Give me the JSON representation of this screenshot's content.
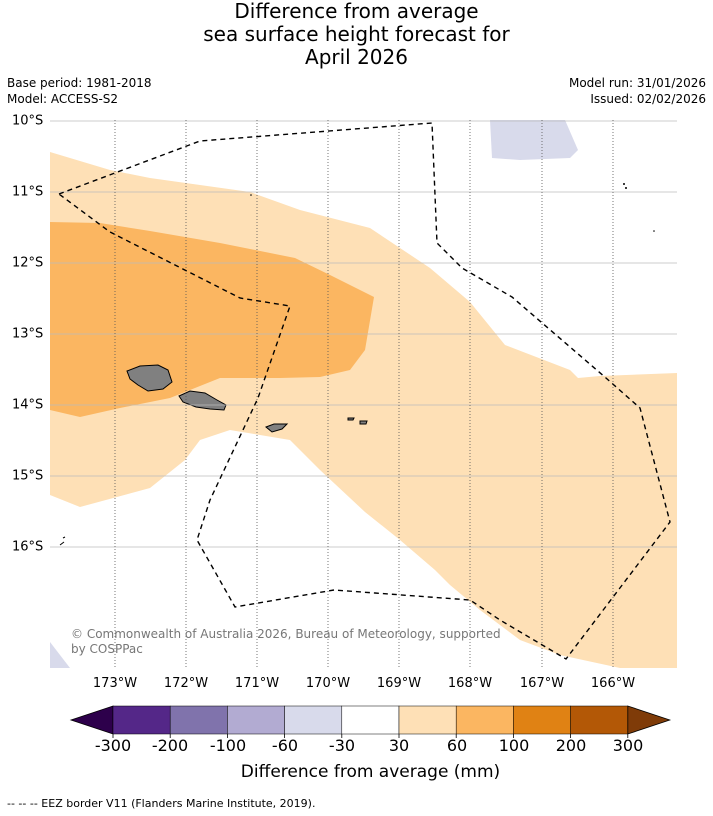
{
  "title": {
    "line1": "Difference from average",
    "line2": "sea surface height forecast for",
    "line3": "April 2026"
  },
  "meta": {
    "base_period": "Base period: 1981-2018",
    "model": "Model: ACCESS-S2",
    "model_run": "Model run: 31/01/2026",
    "issued": "Issued: 02/02/2026"
  },
  "latitudes": [
    "10°S",
    "11°S",
    "12°S",
    "13°S",
    "14°S",
    "15°S",
    "16°S"
  ],
  "longitudes": [
    "173°W",
    "172°W",
    "171°W",
    "170°W",
    "169°W",
    "168°W",
    "167°W",
    "166°W"
  ],
  "copyright": "© Commonwealth of Australia 2026, Bureau of Meteorology, supported by COSPPac",
  "colorbar": {
    "title": "Difference from average (mm)",
    "labels": [
      "-300",
      "-200",
      "-100",
      "-60",
      "-30",
      "30",
      "60",
      "100",
      "200",
      "300"
    ],
    "colors": [
      "#2d004b",
      "#542788",
      "#8073ac",
      "#b2abd2",
      "#d8daeb",
      "#ffffff",
      "#fee0b6",
      "#fbb661",
      "#e08214",
      "#b35806",
      "#7f3b08"
    ]
  },
  "legend": {
    "eez": "--  --  -- EEZ border V11 (Flanders Marine Institute, 2019)."
  }
}
